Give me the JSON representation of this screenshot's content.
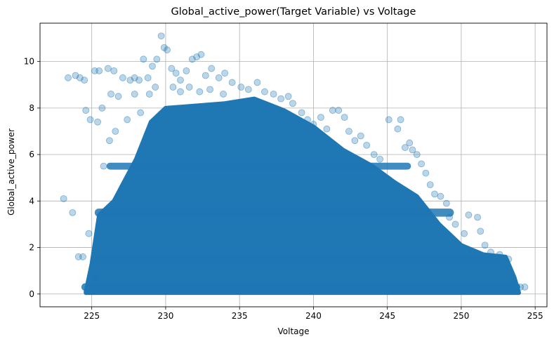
{
  "chart_data": {
    "type": "scatter",
    "title": "Global_active_power(Target Variable) vs Voltage",
    "xlabel": "Voltage",
    "ylabel": "Global_active_power",
    "xlim": [
      221.5,
      255.8
    ],
    "ylim": [
      -0.55,
      11.65
    ],
    "xticks": [
      225,
      230,
      235,
      240,
      245,
      250,
      255
    ],
    "yticks": [
      0,
      2,
      4,
      6,
      8,
      10
    ],
    "grid": true,
    "marker_color": "#1f77b4",
    "marker_alpha": 0.3,
    "dense_region": {
      "upper_envelope": [
        [
          224.6,
          0.1
        ],
        [
          225.0,
          1.3
        ],
        [
          225.5,
          3.4
        ],
        [
          226.5,
          4.0
        ],
        [
          228.0,
          5.8
        ],
        [
          229.0,
          7.4
        ],
        [
          230.0,
          8.0
        ],
        [
          232.0,
          8.1
        ],
        [
          234.0,
          8.2
        ],
        [
          236.0,
          8.4
        ],
        [
          238.0,
          7.9
        ],
        [
          240.0,
          7.2
        ],
        [
          242.0,
          6.2
        ],
        [
          244.0,
          5.5
        ],
        [
          245.5,
          4.8
        ],
        [
          247.0,
          4.2
        ],
        [
          248.5,
          3.0
        ],
        [
          250.0,
          2.1
        ],
        [
          251.5,
          1.7
        ],
        [
          253.0,
          1.6
        ],
        [
          253.6,
          0.7
        ],
        [
          253.9,
          0.05
        ]
      ]
    },
    "band_centers": [
      0.3,
      1.5,
      3.5,
      5.5
    ],
    "points": [
      [
        223.1,
        4.1
      ],
      [
        223.7,
        3.5
      ],
      [
        223.4,
        9.3
      ],
      [
        223.9,
        9.4
      ],
      [
        224.2,
        9.3
      ],
      [
        224.5,
        9.2
      ],
      [
        224.1,
        1.6
      ],
      [
        224.4,
        1.6
      ],
      [
        224.6,
        7.9
      ],
      [
        224.9,
        7.5
      ],
      [
        225.2,
        9.6
      ],
      [
        225.5,
        9.6
      ],
      [
        225.4,
        7.4
      ],
      [
        225.7,
        8.0
      ],
      [
        226.1,
        9.7
      ],
      [
        226.5,
        9.6
      ],
      [
        226.3,
        8.6
      ],
      [
        226.8,
        8.5
      ],
      [
        227.1,
        9.3
      ],
      [
        227.6,
        9.2
      ],
      [
        227.9,
        9.3
      ],
      [
        228.2,
        9.2
      ],
      [
        228.5,
        10.1
      ],
      [
        228.8,
        9.3
      ],
      [
        229.1,
        9.8
      ],
      [
        229.4,
        10.1
      ],
      [
        229.7,
        11.1
      ],
      [
        229.9,
        10.6
      ],
      [
        230.1,
        10.5
      ],
      [
        230.4,
        9.7
      ],
      [
        230.7,
        9.5
      ],
      [
        231.0,
        9.2
      ],
      [
        231.4,
        9.6
      ],
      [
        231.8,
        10.1
      ],
      [
        232.1,
        10.2
      ],
      [
        232.4,
        10.3
      ],
      [
        232.7,
        9.4
      ],
      [
        233.1,
        9.7
      ],
      [
        233.6,
        9.3
      ],
      [
        234.0,
        9.5
      ],
      [
        234.5,
        9.1
      ],
      [
        235.1,
        8.9
      ],
      [
        235.6,
        8.8
      ],
      [
        236.2,
        9.1
      ],
      [
        236.7,
        8.7
      ],
      [
        237.3,
        8.6
      ],
      [
        237.8,
        8.4
      ],
      [
        238.3,
        8.5
      ],
      [
        238.6,
        8.2
      ],
      [
        239.2,
        7.8
      ],
      [
        239.6,
        7.5
      ],
      [
        240.0,
        7.3
      ],
      [
        240.5,
        7.6
      ],
      [
        240.9,
        7.1
      ],
      [
        241.3,
        7.9
      ],
      [
        241.7,
        7.9
      ],
      [
        242.1,
        7.6
      ],
      [
        242.4,
        7.0
      ],
      [
        242.8,
        6.6
      ],
      [
        243.2,
        6.8
      ],
      [
        243.6,
        6.4
      ],
      [
        244.1,
        6.0
      ],
      [
        244.5,
        5.8
      ],
      [
        245.1,
        7.5
      ],
      [
        245.7,
        7.1
      ],
      [
        245.9,
        7.5
      ],
      [
        246.2,
        6.3
      ],
      [
        246.5,
        6.5
      ],
      [
        246.7,
        6.2
      ],
      [
        247.0,
        6.0
      ],
      [
        247.3,
        5.6
      ],
      [
        247.6,
        5.2
      ],
      [
        247.9,
        4.7
      ],
      [
        248.2,
        4.3
      ],
      [
        248.6,
        4.2
      ],
      [
        249.0,
        3.9
      ],
      [
        249.2,
        3.3
      ],
      [
        249.6,
        3.0
      ],
      [
        250.2,
        2.6
      ],
      [
        250.5,
        3.4
      ],
      [
        251.1,
        3.3
      ],
      [
        251.3,
        2.7
      ],
      [
        251.6,
        2.1
      ],
      [
        252.0,
        1.8
      ],
      [
        252.6,
        1.7
      ],
      [
        253.2,
        1.5
      ],
      [
        253.5,
        0.4
      ],
      [
        254.0,
        0.3
      ],
      [
        254.3,
        0.3
      ],
      [
        224.8,
        2.6
      ],
      [
        225.3,
        0.7
      ],
      [
        225.8,
        5.5
      ],
      [
        226.2,
        6.6
      ],
      [
        226.6,
        7.0
      ],
      [
        227.4,
        7.5
      ],
      [
        227.9,
        8.6
      ],
      [
        228.3,
        7.8
      ],
      [
        228.9,
        8.6
      ],
      [
        229.3,
        8.9
      ],
      [
        230.5,
        8.9
      ],
      [
        231.0,
        8.7
      ],
      [
        231.6,
        8.9
      ],
      [
        232.3,
        8.7
      ],
      [
        233.0,
        8.8
      ],
      [
        233.9,
        8.6
      ]
    ]
  }
}
